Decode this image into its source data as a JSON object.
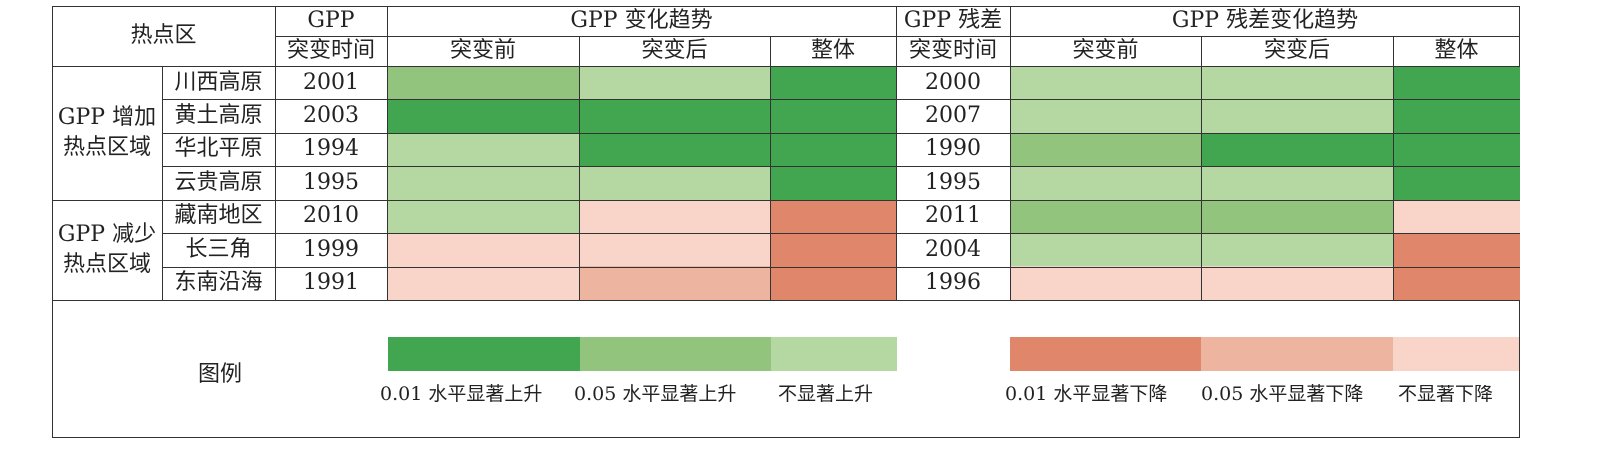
{
  "colors": {
    "up_001": "#41a64f",
    "up_005": "#93c47d",
    "up_ns": "#b5d8a3",
    "down_001": "#e0866a",
    "down_005": "#edb5a0",
    "down_ns": "#f8d4c9"
  },
  "header": {
    "hotspot": "热点区",
    "gpp": "GPP",
    "gpp_trend": "GPP 变化趋势",
    "gpp_residual": "GPP 残差",
    "gpp_residual_trend": "GPP 残差变化趋势",
    "mutation_time": "突变时间",
    "mutation_time_2": "突变时间",
    "before": "突变前",
    "after": "突变后",
    "overall": "整体",
    "before_2": "突变前",
    "after_2": "突变后",
    "overall_2": "整体"
  },
  "groups": {
    "increase_line1": "GPP 增加",
    "increase_line2": "热点区域",
    "decrease_line1": "GPP 减少",
    "decrease_line2": "热点区域"
  },
  "rows": [
    {
      "region": "川西高原",
      "gpp_year": "2001",
      "gpp_trend": [
        "up_005",
        "up_ns",
        "up_001"
      ],
      "res_year": "2000",
      "res_trend": [
        "up_ns",
        "up_ns",
        "up_001"
      ]
    },
    {
      "region": "黄土高原",
      "gpp_year": "2003",
      "gpp_trend": [
        "up_001",
        "up_001",
        "up_001"
      ],
      "res_year": "2007",
      "res_trend": [
        "up_ns",
        "up_ns",
        "up_001"
      ]
    },
    {
      "region": "华北平原",
      "gpp_year": "1994",
      "gpp_trend": [
        "up_ns",
        "up_001",
        "up_001"
      ],
      "res_year": "1990",
      "res_trend": [
        "up_005",
        "up_001",
        "up_001"
      ]
    },
    {
      "region": "云贵高原",
      "gpp_year": "1995",
      "gpp_trend": [
        "up_ns",
        "up_ns",
        "up_001"
      ],
      "res_year": "1995",
      "res_trend": [
        "up_ns",
        "up_ns",
        "up_001"
      ]
    },
    {
      "region": "藏南地区",
      "gpp_year": "2010",
      "gpp_trend": [
        "up_ns",
        "down_ns",
        "down_001"
      ],
      "res_year": "2011",
      "res_trend": [
        "up_005",
        "up_005",
        "down_ns"
      ]
    },
    {
      "region": "长三角",
      "gpp_year": "1999",
      "gpp_trend": [
        "down_ns",
        "down_ns",
        "down_001"
      ],
      "res_year": "2004",
      "res_trend": [
        "up_ns",
        "up_ns",
        "down_001"
      ]
    },
    {
      "region": "东南沿海",
      "gpp_year": "1991",
      "gpp_trend": [
        "down_ns",
        "down_005",
        "down_001"
      ],
      "res_year": "1996",
      "res_trend": [
        "down_ns",
        "down_ns",
        "down_001"
      ]
    }
  ],
  "legend": {
    "title": "图例",
    "up_001": "0.01 水平显著上升",
    "up_005": "0.05 水平显著上升",
    "up_ns": "不显著上升",
    "down_001": "0.01 水平显著下降",
    "down_005": "0.05 水平显著下降",
    "down_ns": "不显著下降"
  }
}
